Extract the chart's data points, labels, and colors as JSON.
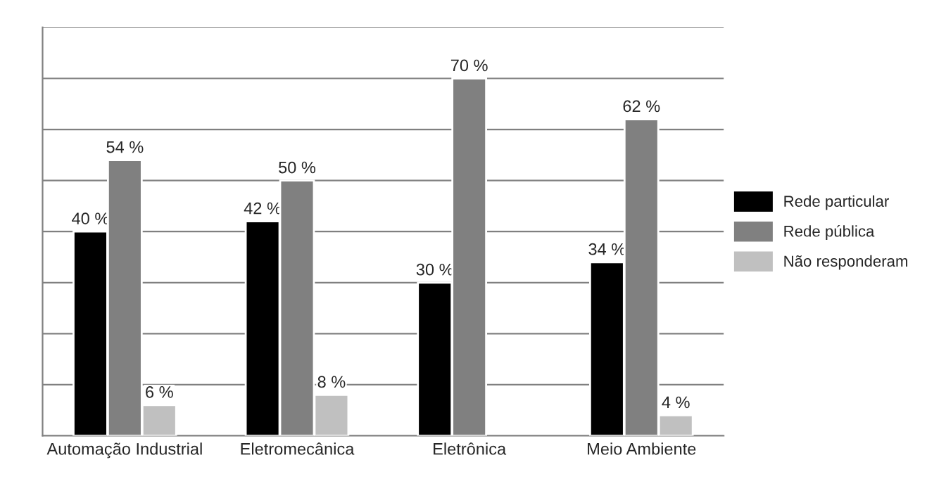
{
  "chart_data": {
    "type": "bar",
    "categories": [
      "Automação Industrial",
      "Eletromecânica",
      "Eletrônica",
      "Meio Ambiente"
    ],
    "series": [
      {
        "name": "Rede particular",
        "color": "#000000",
        "values": [
          40,
          42,
          30,
          34
        ],
        "value_labels": [
          "40 %",
          "42 %",
          "30 %",
          "34 %"
        ]
      },
      {
        "name": "Rede pública",
        "color": "#808080",
        "values": [
          54,
          50,
          70,
          62
        ],
        "value_labels": [
          "54 %",
          "50 %",
          "70 %",
          "62 %"
        ]
      },
      {
        "name": "Não responderam",
        "color": "#c0c0c0",
        "values": [
          6,
          8,
          null,
          4
        ],
        "value_labels": [
          "6 %",
          "8 %",
          null,
          "4 %"
        ]
      }
    ],
    "ylim": [
      0,
      80
    ],
    "yticks": [
      {
        "value": 0,
        "label": null
      },
      {
        "value": 10,
        "label": null
      },
      {
        "value": 20,
        "label": null
      },
      {
        "value": 30,
        "label": null
      },
      {
        "value": 40,
        "label": null
      },
      {
        "value": 50,
        "label": null
      },
      {
        "value": 60,
        "label": null
      },
      {
        "value": 70,
        "label": null
      },
      {
        "value": 80,
        "label": null
      }
    ],
    "tick_labels": "x",
    "grid": "y",
    "legend": "right"
  }
}
